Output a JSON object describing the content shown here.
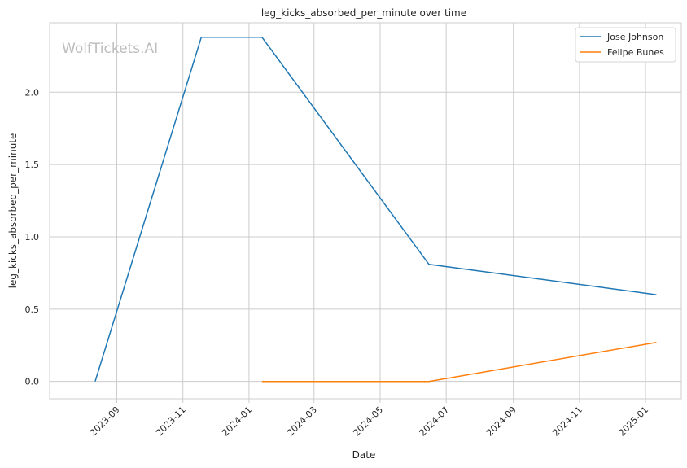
{
  "watermark": "WolfTickets.AI",
  "chart_data": {
    "type": "line",
    "title": "leg_kicks_absorbed_per_minute over time",
    "xlabel": "Date",
    "ylabel": "leg_kicks_absorbed_per_minute",
    "xlim": [
      "2023-07-01",
      "2025-02-03"
    ],
    "ylim": [
      -0.12,
      2.48
    ],
    "x_ticks": [
      "2023-09",
      "2023-11",
      "2024-01",
      "2024-03",
      "2024-05",
      "2024-07",
      "2024-09",
      "2024-11",
      "2025-01"
    ],
    "y_ticks": [
      "0.0",
      "0.5",
      "1.0",
      "1.5",
      "2.0"
    ],
    "grid": true,
    "legend_position": "top-right",
    "series": [
      {
        "name": "Jose Johnson",
        "color": "#1f77b4",
        "x": [
          "2023-08-12",
          "2023-11-18",
          "2024-01-13",
          "2024-06-15",
          "2025-01-11"
        ],
        "y": [
          0.0,
          2.38,
          2.38,
          0.81,
          0.6
        ]
      },
      {
        "name": "Felipe Bunes",
        "color": "#ff7f0e",
        "x": [
          "2024-01-13",
          "2024-06-15",
          "2025-01-11"
        ],
        "y": [
          0.0,
          0.0,
          0.27
        ]
      }
    ]
  }
}
